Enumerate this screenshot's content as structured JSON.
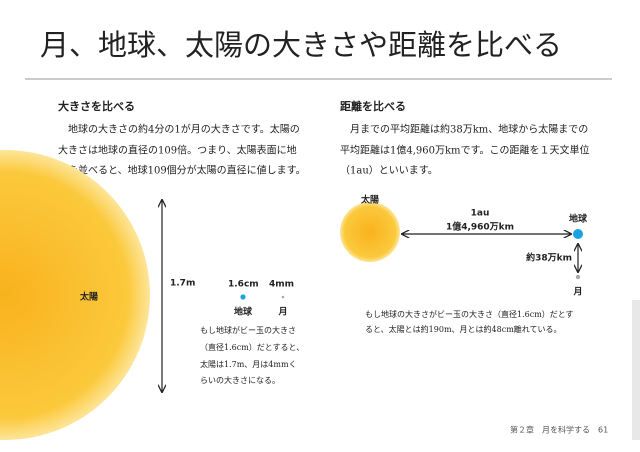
{
  "header": {
    "title": "月、地球、太陽の大きさや距離を比べる"
  },
  "size_section": {
    "heading": "大きさを比べる",
    "paragraph": [
      "　地球の大きさの約4分の1が月の大きさです。太陽の",
      "大きさは地球の直径の109倍。つまり、太陽表面に地",
      "球を並べると、地球109個分が太陽の直径に値します。"
    ],
    "figure": {
      "sun_label": "太陽",
      "sun_size": "1.7m",
      "earth_size": "1.6cm",
      "moon_size": "4mm",
      "earth_label": "地球",
      "moon_label": "月",
      "note": [
        "もし地球がビー玉の大きさ",
        "（直径1.6cm）だとすると、",
        "太陽は1.7m、月は4mmく",
        "らいの大きさになる。"
      ]
    }
  },
  "distance_section": {
    "heading": "距離を比べる",
    "paragraph": [
      "　月までの平均距離は約38万km、地球から太陽までの",
      "平均距離は1億4,960万kmです。この距離を１天文単位",
      "（1au）といいます。"
    ],
    "figure": {
      "sun_label": "太陽",
      "au_label": "1au",
      "sun_earth_distance": "1億4,960万km",
      "earth_label": "地球",
      "earth_moon_distance": "約38万km",
      "moon_label": "月",
      "note": [
        "もし地球の大きさがビー玉の大きさ（直径1.6cm）だとす",
        "ると、太陽とは約190m、月とは約48cm離れている。"
      ]
    }
  },
  "footer": {
    "chapter": "第２章　月を科学する",
    "page_number": "61"
  }
}
